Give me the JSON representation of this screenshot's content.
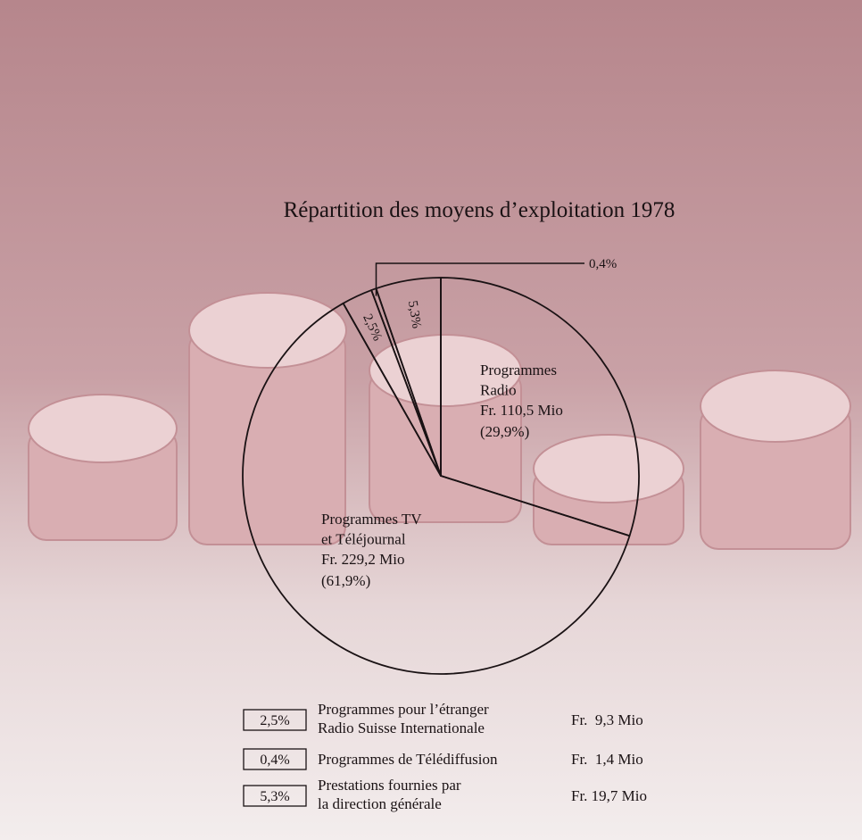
{
  "chart_data": {
    "type": "pie",
    "title": "Répartition des moyens d’exploitation 1978",
    "categories": [
      [
        "Programmes",
        "Radio"
      ],
      [
        "Programmes TV",
        "et Téléjournal"
      ],
      [
        "Programmes pour l’étranger",
        "Radio Suisse Internationale"
      ],
      [
        "Programmes de Télédiffusion"
      ],
      [
        "Prestations fournies par",
        "la direction générale"
      ]
    ],
    "values": [
      29.9,
      61.9,
      2.5,
      0.4,
      5.3
    ],
    "value_labels": [
      "(29,9%)",
      "(61,9%)",
      "2,5%",
      "0,4%",
      "5,3%"
    ],
    "amounts": [
      "Fr. 110,5 Mio",
      "Fr. 229,2 Mio",
      "Fr.  9,3 Mio",
      "Fr.  1,4 Mio",
      "Fr. 19,7 Mio"
    ],
    "color": "#1a1214"
  }
}
